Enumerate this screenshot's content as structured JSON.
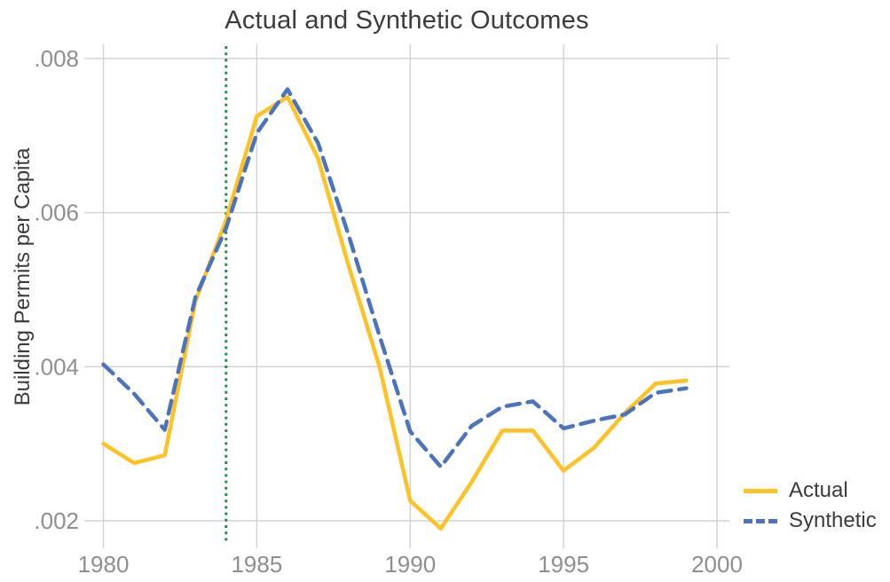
{
  "chart_data": {
    "type": "line",
    "title": "Actual and Synthetic Outcomes",
    "ylabel": "Building Permits per Capita",
    "xlabel": "",
    "grid": true,
    "legend_position": "bottom-right-outside",
    "x": [
      1980,
      1981,
      1982,
      1983,
      1984,
      1985,
      1986,
      1987,
      1988,
      1989,
      1990,
      1991,
      1992,
      1993,
      1994,
      1995,
      1996,
      1997,
      1998,
      1999
    ],
    "series": [
      {
        "name": "Actual",
        "style": "solid",
        "color": "#FFC224",
        "values": [
          0.003,
          0.00275,
          0.00285,
          0.00485,
          0.0059,
          0.00725,
          0.0075,
          0.0067,
          0.0053,
          0.004,
          0.00226,
          0.0019,
          0.0025,
          0.00317,
          0.00317,
          0.00265,
          0.00295,
          0.0034,
          0.00378,
          0.00382
        ]
      },
      {
        "name": "Synthetic",
        "style": "dashed",
        "color": "#4C74BE",
        "values": [
          0.00403,
          0.00365,
          0.00318,
          0.0049,
          0.0058,
          0.00703,
          0.0076,
          0.0069,
          0.0057,
          0.0044,
          0.00316,
          0.0027,
          0.00323,
          0.00348,
          0.00355,
          0.0032,
          0.0033,
          0.00338,
          0.00366,
          0.00372
        ]
      }
    ],
    "treatment_line": {
      "x": 1984,
      "style": "dotted",
      "color": "#23914B"
    },
    "x_ticks": [
      1980,
      1985,
      1990,
      1995,
      2000
    ],
    "y_ticks": [
      {
        "value": 0.002,
        "label": ".002"
      },
      {
        "value": 0.004,
        "label": ".004"
      },
      {
        "value": 0.006,
        "label": ".006"
      },
      {
        "value": 0.008,
        "label": ".008"
      }
    ],
    "xlim": [
      1979.4,
      2000.4
    ],
    "ylim": [
      0.0019,
      0.0082
    ],
    "colors": {
      "grid": "#d4d4d4",
      "tick_text": "#8f8f8f",
      "title_text": "#3c3c3c"
    }
  }
}
